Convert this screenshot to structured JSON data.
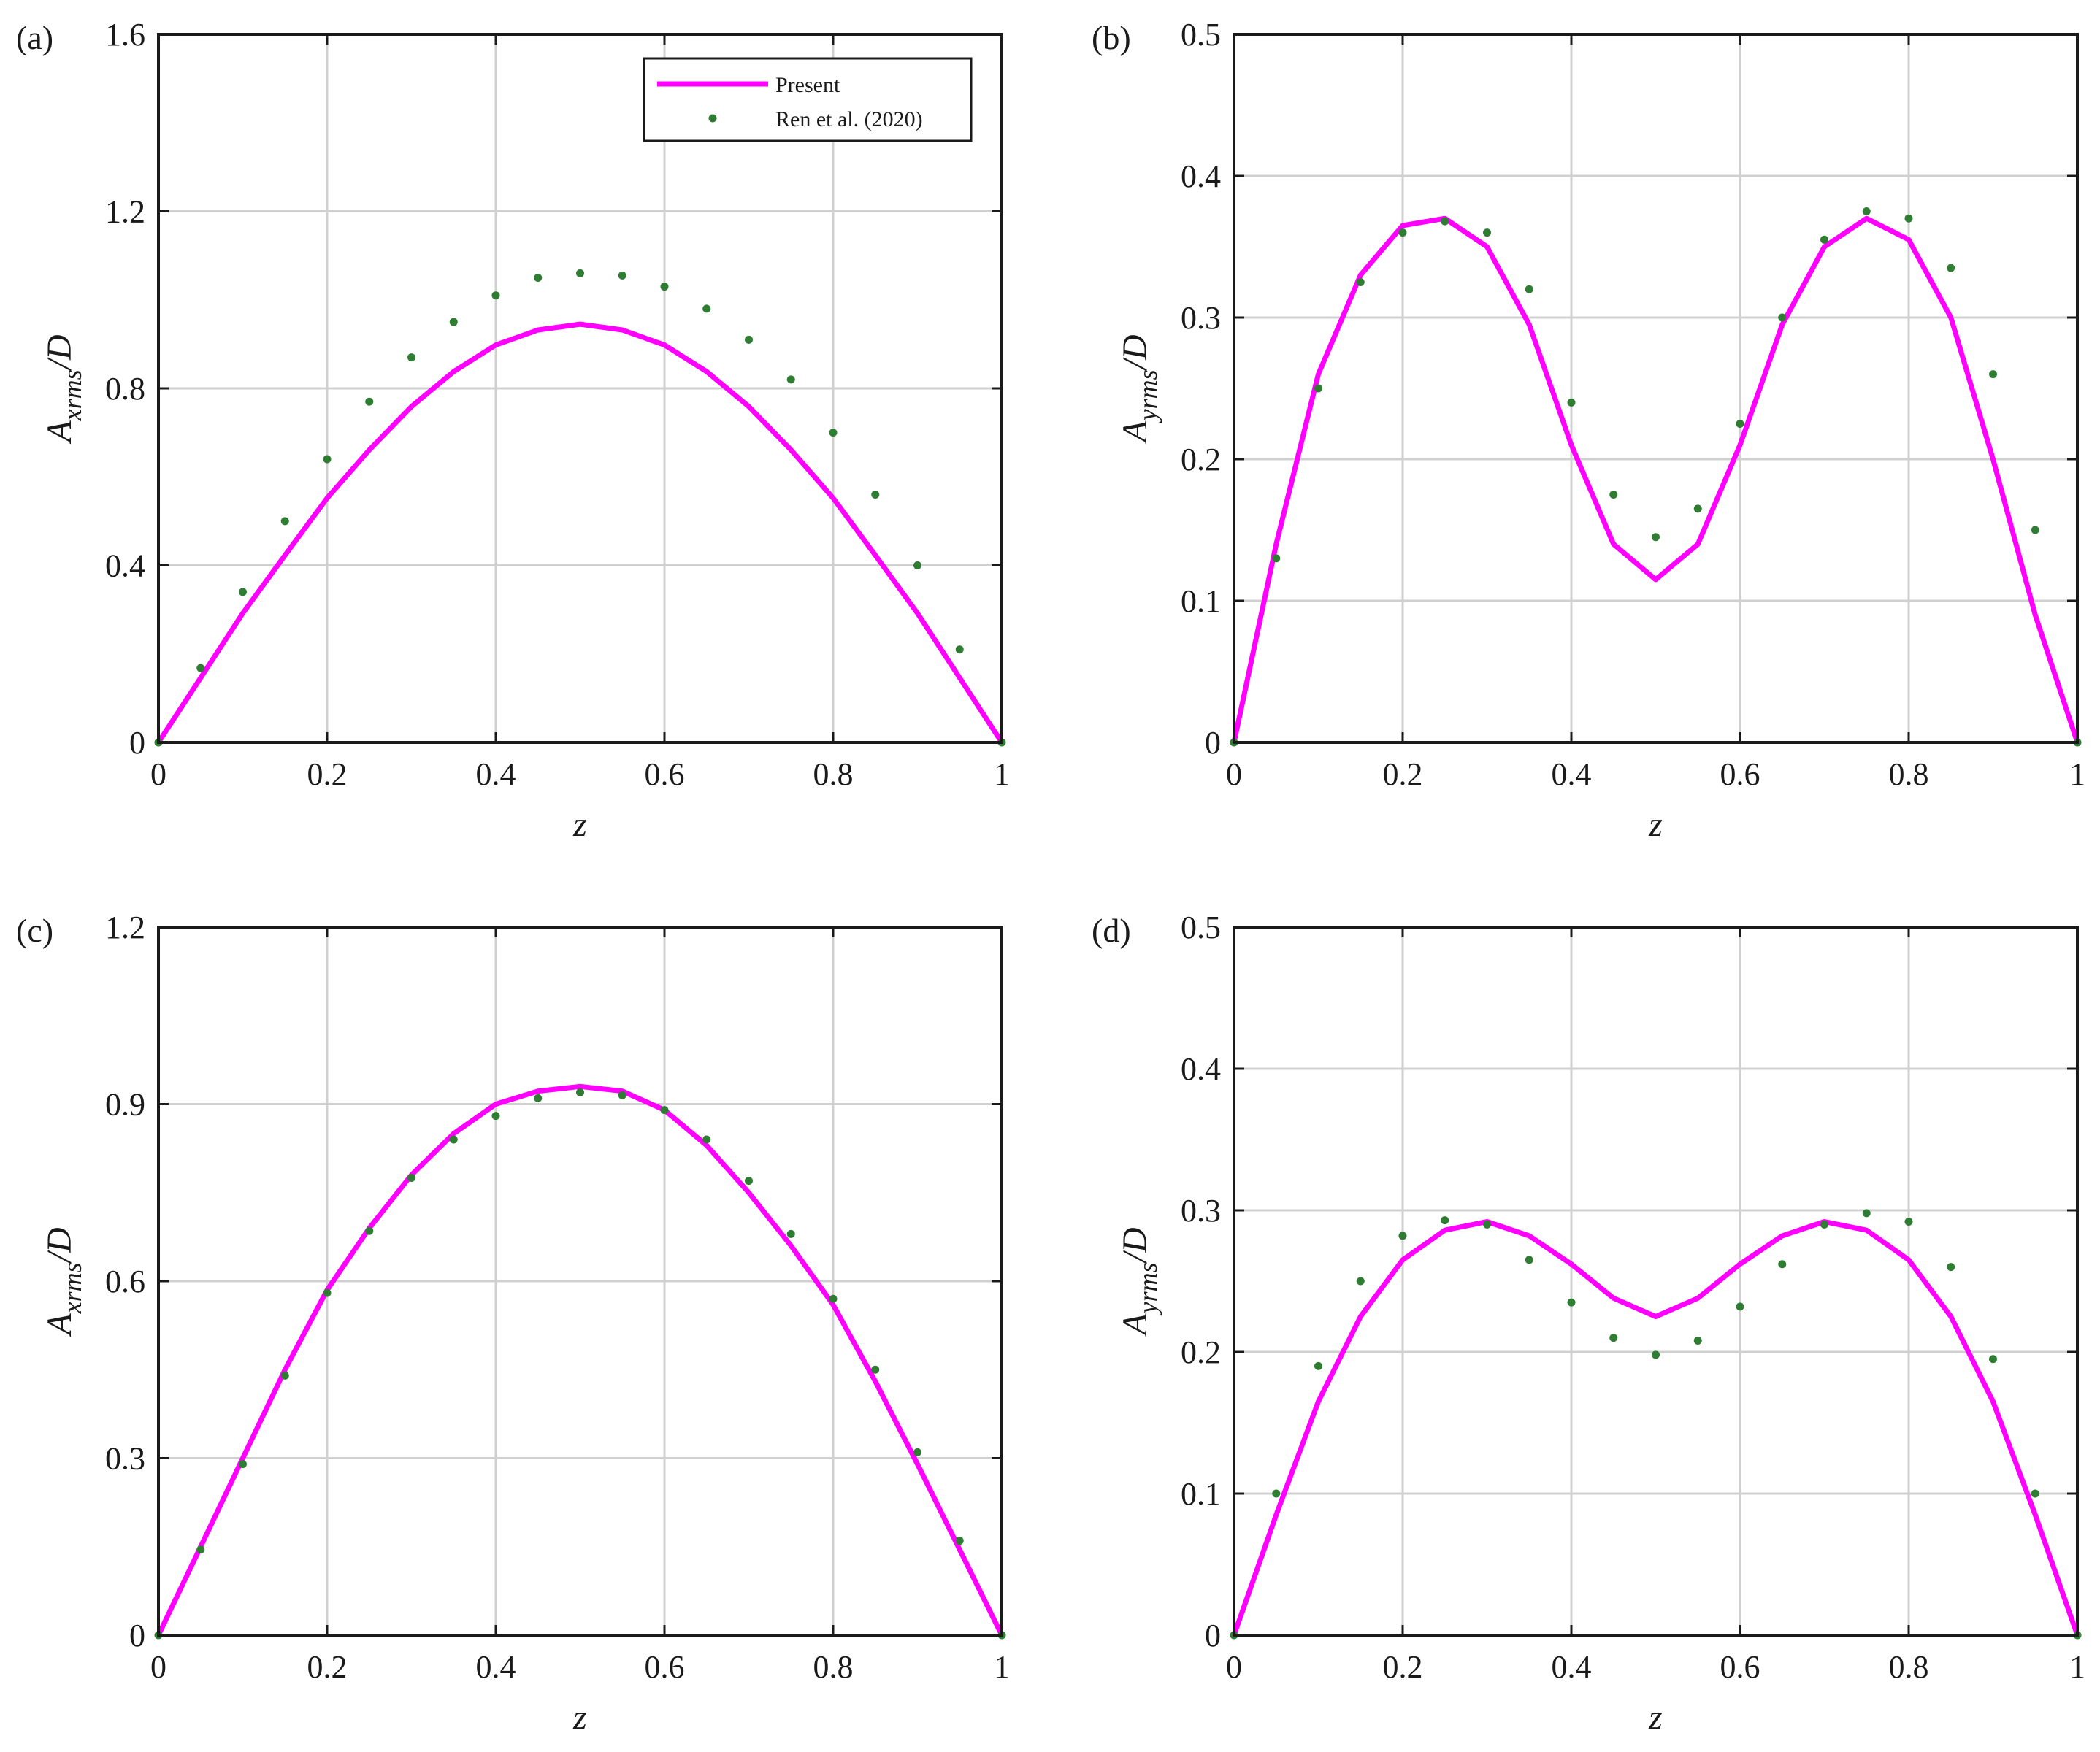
{
  "colors": {
    "present": "#ff00ff",
    "reference": "#2e7d32",
    "grid": "#d0d0d0",
    "axes": "#1a1a1a"
  },
  "legend": {
    "entries": [
      "Present",
      "Ren et al. (2020)"
    ]
  },
  "chart_data": [
    {
      "type": "line",
      "panel": "(a)",
      "xlabel": "z",
      "ylabel": {
        "base": "A",
        "sub": "xrms",
        "suffix": "/D"
      },
      "xlim": [
        0,
        1
      ],
      "ylim": [
        0,
        1.6
      ],
      "xticks": [
        0,
        0.2,
        0.4,
        0.6,
        0.8,
        1
      ],
      "yticks": [
        0,
        0.4,
        0.8,
        1.2,
        1.6
      ],
      "grid": true,
      "legend_position": "top-right",
      "x": [
        0,
        0.05,
        0.1,
        0.15,
        0.2,
        0.25,
        0.3,
        0.35,
        0.4,
        0.45,
        0.5,
        0.55,
        0.6,
        0.65,
        0.7,
        0.75,
        0.8,
        0.85,
        0.9,
        0.95,
        1
      ],
      "series": [
        {
          "name": "Present",
          "style": "line",
          "values": [
            0,
            0.146,
            0.292,
            0.423,
            0.552,
            0.661,
            0.759,
            0.838,
            0.898,
            0.932,
            0.945,
            0.932,
            0.898,
            0.838,
            0.759,
            0.661,
            0.552,
            0.423,
            0.292,
            0.146,
            0
          ]
        },
        {
          "name": "Ren et al. (2020)",
          "style": "dots",
          "values": [
            0,
            0.168,
            0.34,
            0.5,
            0.64,
            0.77,
            0.87,
            0.95,
            1.01,
            1.05,
            1.06,
            1.055,
            1.03,
            0.98,
            0.91,
            0.82,
            0.7,
            0.56,
            0.4,
            0.21,
            0
          ]
        }
      ]
    },
    {
      "type": "line",
      "panel": "(b)",
      "xlabel": "z",
      "ylabel": {
        "base": "A",
        "sub": "yrms",
        "suffix": "/D"
      },
      "xlim": [
        0,
        1
      ],
      "ylim": [
        0,
        0.5
      ],
      "xticks": [
        0,
        0.2,
        0.4,
        0.6,
        0.8,
        1
      ],
      "yticks": [
        0,
        0.1,
        0.2,
        0.3,
        0.4,
        0.5
      ],
      "grid": true,
      "x": [
        0,
        0.05,
        0.1,
        0.15,
        0.2,
        0.25,
        0.3,
        0.35,
        0.4,
        0.45,
        0.5,
        0.55,
        0.6,
        0.65,
        0.7,
        0.75,
        0.8,
        0.85,
        0.9,
        0.95,
        1
      ],
      "series": [
        {
          "name": "Present",
          "style": "line",
          "values": [
            0,
            0.14,
            0.26,
            0.33,
            0.365,
            0.37,
            0.35,
            0.295,
            0.21,
            0.14,
            0.115,
            0.14,
            0.21,
            0.295,
            0.35,
            0.37,
            0.355,
            0.3,
            0.2,
            0.09,
            0
          ]
        },
        {
          "name": "Ren et al. (2020)",
          "style": "dots",
          "values": [
            0,
            0.13,
            0.25,
            0.325,
            0.36,
            0.368,
            0.36,
            0.32,
            0.24,
            0.175,
            0.145,
            0.165,
            0.225,
            0.3,
            0.355,
            0.375,
            0.37,
            0.335,
            0.26,
            0.15,
            0
          ]
        }
      ]
    },
    {
      "type": "line",
      "panel": "(c)",
      "xlabel": "z",
      "ylabel": {
        "base": "A",
        "sub": "xrms",
        "suffix": "/D"
      },
      "xlim": [
        0,
        1
      ],
      "ylim": [
        0,
        1.2
      ],
      "xticks": [
        0,
        0.2,
        0.4,
        0.6,
        0.8,
        1
      ],
      "yticks": [
        0,
        0.3,
        0.6,
        0.9,
        1.2
      ],
      "grid": true,
      "x": [
        0,
        0.05,
        0.1,
        0.15,
        0.2,
        0.25,
        0.3,
        0.35,
        0.4,
        0.45,
        0.5,
        0.55,
        0.6,
        0.65,
        0.7,
        0.75,
        0.8,
        0.85,
        0.9,
        0.95,
        1
      ],
      "series": [
        {
          "name": "Present",
          "style": "line",
          "values": [
            0,
            0.15,
            0.3,
            0.45,
            0.585,
            0.69,
            0.78,
            0.85,
            0.9,
            0.922,
            0.93,
            0.922,
            0.89,
            0.83,
            0.75,
            0.66,
            0.56,
            0.43,
            0.29,
            0.145,
            0
          ]
        },
        {
          "name": "Ren et al. (2020)",
          "style": "dots",
          "values": [
            0,
            0.145,
            0.29,
            0.44,
            0.58,
            0.685,
            0.775,
            0.84,
            0.88,
            0.91,
            0.92,
            0.915,
            0.89,
            0.84,
            0.77,
            0.68,
            0.57,
            0.45,
            0.31,
            0.16,
            0
          ]
        }
      ]
    },
    {
      "type": "line",
      "panel": "(d)",
      "xlabel": "z",
      "ylabel": {
        "base": "A",
        "sub": "yrms",
        "suffix": "/D"
      },
      "xlim": [
        0,
        1
      ],
      "ylim": [
        0,
        0.5
      ],
      "xticks": [
        0,
        0.2,
        0.4,
        0.6,
        0.8,
        1
      ],
      "yticks": [
        0,
        0.1,
        0.2,
        0.3,
        0.4,
        0.5
      ],
      "grid": true,
      "x": [
        0,
        0.05,
        0.1,
        0.15,
        0.2,
        0.25,
        0.3,
        0.35,
        0.4,
        0.45,
        0.5,
        0.55,
        0.6,
        0.65,
        0.7,
        0.75,
        0.8,
        0.85,
        0.9,
        0.95,
        1
      ],
      "series": [
        {
          "name": "Present",
          "style": "line",
          "values": [
            0,
            0.085,
            0.165,
            0.225,
            0.265,
            0.286,
            0.292,
            0.282,
            0.262,
            0.238,
            0.225,
            0.238,
            0.262,
            0.282,
            0.292,
            0.286,
            0.265,
            0.225,
            0.165,
            0.085,
            0
          ]
        },
        {
          "name": "Ren et al. (2020)",
          "style": "dots",
          "values": [
            0,
            0.1,
            0.19,
            0.25,
            0.282,
            0.293,
            0.29,
            0.265,
            0.235,
            0.21,
            0.198,
            0.208,
            0.232,
            0.262,
            0.29,
            0.298,
            0.292,
            0.26,
            0.195,
            0.1,
            0
          ]
        }
      ]
    }
  ]
}
